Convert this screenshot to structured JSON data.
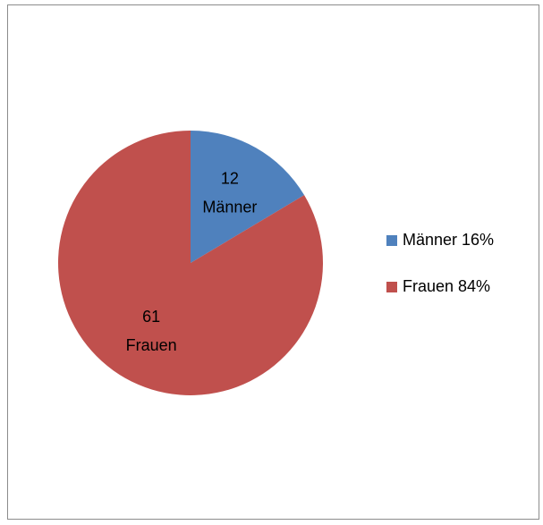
{
  "chart_data": {
    "type": "pie",
    "categories": [
      "Männer",
      "Frauen"
    ],
    "values": [
      12,
      61
    ],
    "colors": [
      "#4f81bd",
      "#c0504d"
    ],
    "legend_labels": [
      "Männer 16%",
      "Frauen 84%"
    ],
    "legend": "right"
  }
}
